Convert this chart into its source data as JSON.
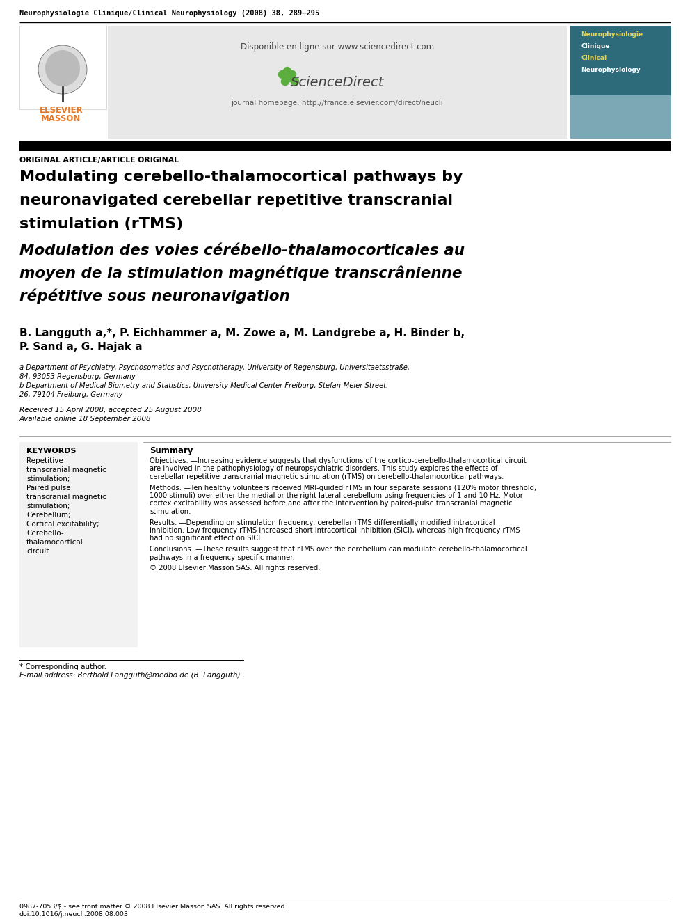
{
  "journal_header": "Neurophysiologie Clinique/Clinical Neurophysiology (2008) 38, 289–295",
  "available_online": "Disponible en ligne sur www.sciencedirect.com",
  "journal_homepage": "journal homepage: http://france.elsevier.com/direct/neucli",
  "article_type": "ORIGINAL ARTICLE/ARTICLE ORIGINAL",
  "title_en_lines": [
    "Modulating cerebello-thalamocortical pathways by",
    "neuronavigated cerebellar repetitive transcranial",
    "stimulation (rTMS)"
  ],
  "title_fr_lines": [
    "Modulation des voies cérébello-thalamocorticales au",
    "moyen de la stimulation magnétique transcrânienne",
    "répétitive sous neuronavigation"
  ],
  "authors_line1": "B. Langguth a,*, P. Eichhammer a, M. Zowe a, M. Landgrebe a, H. Binder b,",
  "authors_line2": "P. Sand a, G. Hajak a",
  "affil_a_line1": "a Department of Psychiatry, Psychosomatics and Psychotherapy, University of Regensburg, Universitaetsstraße,",
  "affil_a_line2": "84, 93053 Regensburg, Germany",
  "affil_b_line1": "b Department of Medical Biometry and Statistics, University Medical Center Freiburg, Stefan-Meier-Street,",
  "affil_b_line2": "26, 79104 Freiburg, Germany",
  "date_line1": "Received 15 April 2008; accepted 25 August 2008",
  "date_line2": "Available online 18 September 2008",
  "keywords_title": "KEYWORDS",
  "keywords_lines": [
    "Repetitive",
    "transcranial magnetic",
    "stimulation;",
    "Paired pulse",
    "transcranial magnetic",
    "stimulation;",
    "Cerebellum;",
    "Cortical excitability;",
    "Cerebello-",
    "thalamocortical",
    "circuit"
  ],
  "summary_title": "Summary",
  "obj_label": "Objectives.",
  "obj_text": "—Increasing evidence suggests that dysfunctions of the cortico-cerebello-thalamocortical circuit are involved in the pathophysiology of neuropsychiatric disorders. This study explores the effects of cerebellar repetitive transcranial magnetic stimulation (rTMS) on cerebello-thalamocortical pathways.",
  "meth_label": "Methods.",
  "meth_text": "—Ten healthy volunteers received MRI-guided rTMS in four separate sessions (120% motor threshold, 1000 stimuli) over either the medial or the right lateral cerebellum using frequencies of 1 and 10 Hz. Motor cortex excitability was assessed before and after the intervention by paired-pulse transcranial magnetic stimulation.",
  "res_label": "Results.",
  "res_text": "—Depending on stimulation frequency, cerebellar rTMS differentially modified intracortical inhibition. Low frequency rTMS increased short intracortical inhibition (SICI), whereas high frequency rTMS had no significant effect on SICI.",
  "conc_label": "Conclusions.",
  "conc_text": "—These results suggest that rTMS over the cerebellum can modulate cerebello-thalamocortical pathways in a frequency-specific manner.",
  "copyright": "© 2008 Elsevier Masson SAS. All rights reserved.",
  "footnote1": "* Corresponding author.",
  "footnote2": "E-mail address: Berthold.Langguth@medbo.de (B. Langguth).",
  "footer1": "0987-7053/$ - see front matter © 2008 Elsevier Masson SAS. All rights reserved.",
  "footer2": "doi:10.1016/j.neucli.2008.08.003",
  "elsevier_orange": "#E87722",
  "sd_green": "#5BAD3E",
  "cover_teal_dark": "#2D6B7A",
  "cover_teal_light": "#7BA8B4",
  "cover_yellow": "#E8D44D",
  "gray_panel": "#E8E8E8",
  "kw_bg": "#F2F2F2",
  "white": "#FFFFFF",
  "black": "#000000",
  "text_dark": "#1A1A1A",
  "blue_super": "#1F3A8A"
}
